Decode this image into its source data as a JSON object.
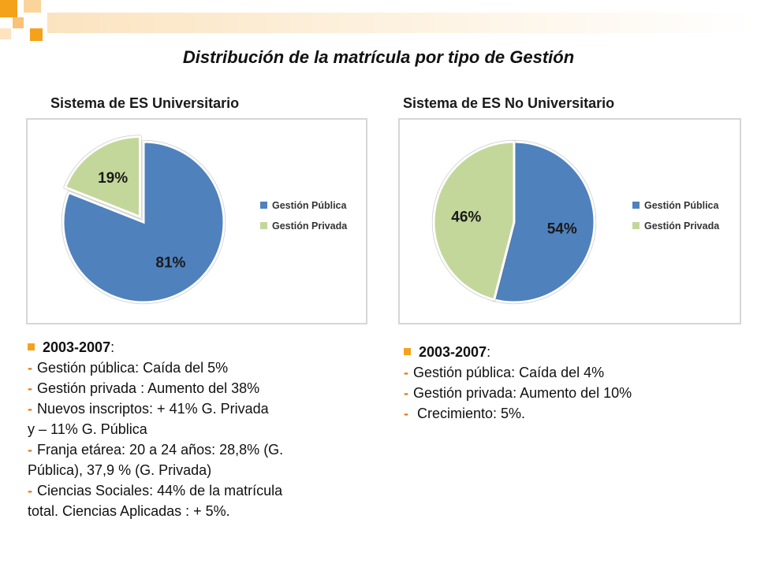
{
  "title": "Distribución de la matrícula por tipo de Gestión",
  "colors": {
    "publica": "#4f81bd",
    "privada": "#c4d79b",
    "accent": "#f4a21a",
    "dash": "#e07b10"
  },
  "chart_data": [
    {
      "type": "pie",
      "title": "Sistema de ES Universitario",
      "categories": [
        "Gestión Pública",
        "Gestión Privada"
      ],
      "values": [
        81,
        19
      ],
      "labels": [
        "81%",
        "19%"
      ],
      "legend": "right"
    },
    {
      "type": "pie",
      "title": "Sistema de ES No Universitario",
      "categories": [
        "Gestión Pública",
        "Gestión Privada"
      ],
      "values": [
        54,
        46
      ],
      "labels": [
        "54%",
        "46%"
      ],
      "legend": "right"
    }
  ],
  "left_notes": {
    "header": "2003-2007",
    "header_suffix": ":",
    "lines": [
      "Gestión pública: Caída del 5%",
      "Gestión privada : Aumento del 38%",
      "Nuevos inscriptos:  + 41% G. Privada",
      "y  – 11% G. Pública",
      "Franja etárea: 20 a 24 años: 28,8% (G.",
      "Pública), 37,9 % (G. Privada)",
      "Ciencias Sociales: 44% de la matrícula",
      "total. Ciencias Aplicadas  : + 5%."
    ]
  },
  "right_notes": {
    "header": "2003-2007",
    "header_suffix": ":",
    "lines": [
      "Gestión pública: Caída del 4%",
      "Gestión privada: Aumento del 10%",
      " Crecimiento: 5%."
    ]
  }
}
